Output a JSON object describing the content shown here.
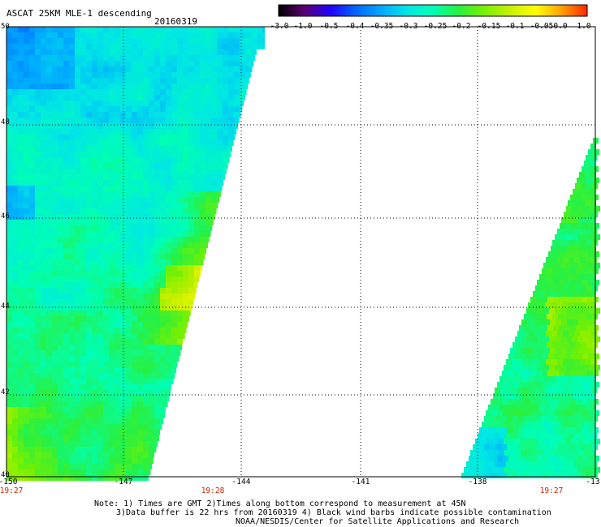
{
  "header": {
    "title": "ASCAT 25KM MLE-1 descending",
    "date": "20160319"
  },
  "colorbar": {
    "labels": [
      "-3.0",
      "-1.0",
      "-0.5",
      "-0.4",
      "-0.35",
      "-0.3",
      "-0.25",
      "-0.2",
      "-0.15",
      "-0.1",
      "-0.05",
      "0.0",
      "1.0"
    ],
    "colors": [
      "#000000",
      "#5a0070",
      "#2200ff",
      "#0066ff",
      "#00a8ff",
      "#00e6e6",
      "#00ffb4",
      "#28f040",
      "#78f000",
      "#c8f000",
      "#ffff00",
      "#ffa000",
      "#ff2800"
    ]
  },
  "map": {
    "lat_labels": [
      "50",
      "48",
      "46",
      "44",
      "42",
      "40"
    ],
    "lon_labels": [
      "-150",
      "-147",
      "-144",
      "-141",
      "-138",
      "-13"
    ],
    "time_labels": [
      "19:27",
      "19:28",
      "19:27"
    ],
    "colors": {
      "background": "#ffffff",
      "grid": "#000000",
      "time": "#cc2200"
    }
  },
  "footer": {
    "note_line1": "Note: 1) Times are GMT 2)Times along bottom correspond to measurement at 45N",
    "note_line2": "3)Data buffer is 22 hrs from 20160319 4) Black wind barbs indicate possible contamination",
    "note_line3": "NOAA/NESDIS/Center for Satellite Applications and Research"
  }
}
